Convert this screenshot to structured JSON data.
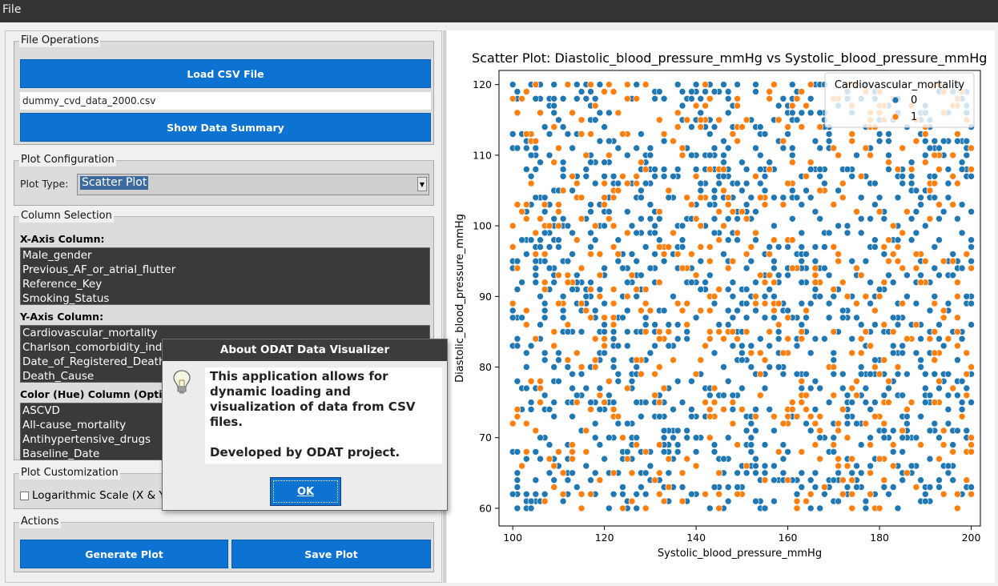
{
  "menubar": {
    "file_label": "File"
  },
  "file_ops": {
    "title": "File Operations",
    "load_label": "Load CSV File",
    "filename": "dummy_cvd_data_2000.csv",
    "summary_label": "Show Data Summary"
  },
  "plot_config": {
    "title": "Plot Configuration",
    "type_label": "Plot Type:",
    "type_value": "Scatter Plot"
  },
  "column_selection": {
    "title": "Column Selection",
    "x_label": "X-Axis Column:",
    "x_items": [
      "Male_gender",
      "Previous_AF_or_atrial_flutter",
      "Reference_Key",
      "Smoking_Status"
    ],
    "y_label": "Y-Axis Column:",
    "y_items": [
      "Cardiovascular_mortality",
      "Charlson_comorbidity_index",
      "Date_of_Registered_Death",
      "Death_Cause"
    ],
    "hue_label": "Color (Hue) Column (Optional):",
    "hue_items": [
      "ASCVD",
      "All-cause_mortality",
      "Antihypertensive_drugs",
      "Baseline_Date"
    ]
  },
  "customization": {
    "title": "Plot Customization",
    "log_label": "Logarithmic Scale (X & Y)"
  },
  "actions": {
    "title": "Actions",
    "generate_label": "Generate Plot",
    "save_label": "Save Plot"
  },
  "dialog": {
    "title": "About ODAT Data Visualizer",
    "message": "This application allows for dynamic loading and visualization of data from CSV files.\n\nDeveloped by ODAT project.",
    "ok_label": "OK",
    "icon": "lightbulb-icon"
  },
  "chart_data": {
    "type": "scatter",
    "title": "Scatter Plot: Diastolic_blood_pressure_mmHg vs Systolic_blood_pressure_mmHg",
    "xlabel": "Systolic_blood_pressure_mmHg",
    "ylabel": "Diastolic_blood_pressure_mmHg",
    "xlim": [
      97,
      202
    ],
    "ylim": [
      57.5,
      122
    ],
    "xticks": [
      100,
      120,
      140,
      160,
      180,
      200
    ],
    "yticks": [
      60,
      70,
      80,
      90,
      100,
      110,
      120
    ],
    "legend_title": "Cardiovascular_mortality",
    "legend_position": "top-right",
    "grid": false,
    "series": [
      {
        "name": "0",
        "color": "#1f77b4",
        "approx_count": 1400
      },
      {
        "name": "1",
        "color": "#ff7f0e",
        "approx_count": 600
      }
    ],
    "x_range": [
      100,
      200
    ],
    "y_range": [
      60,
      120
    ],
    "point_note": "about 2000 integer-valued points spread uniformly over x 100–200 and y 60–120"
  }
}
